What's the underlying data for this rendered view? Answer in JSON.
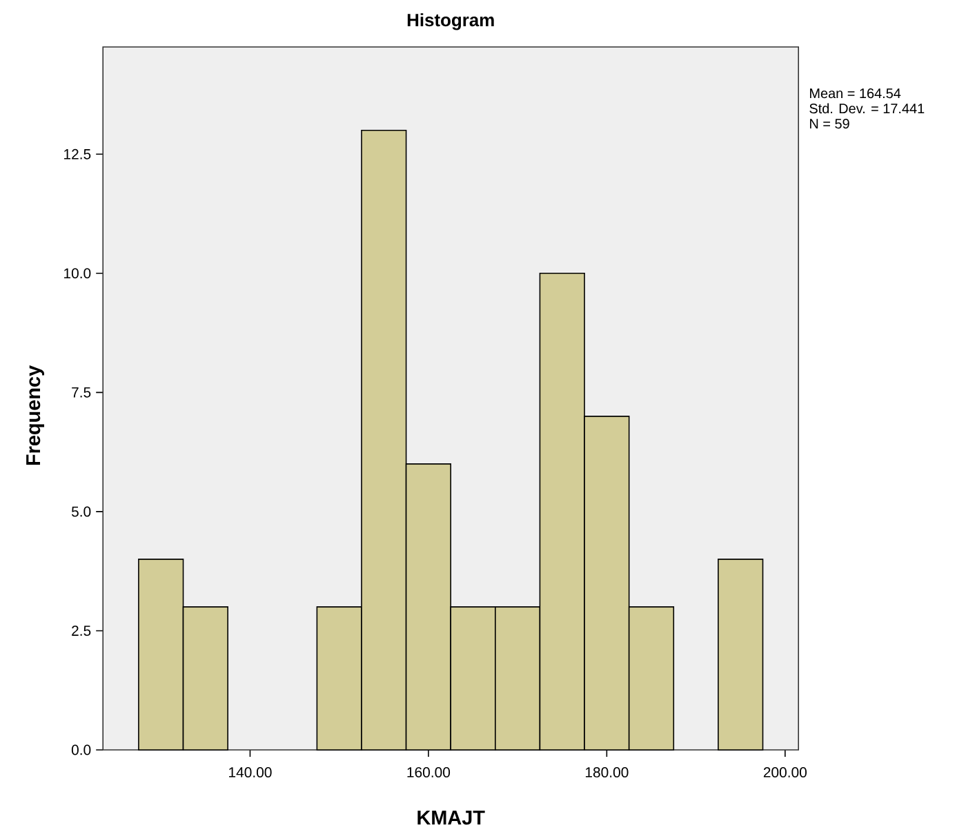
{
  "chart_data": {
    "type": "histogram",
    "title": "Histogram",
    "xlabel": "KMAJT",
    "ylabel": "Frequency",
    "bins": [
      127.5,
      132.5,
      137.5,
      142.5,
      147.5,
      152.5,
      157.5,
      162.5,
      167.5,
      172.5,
      177.5,
      182.5,
      187.5,
      192.5,
      197.5
    ],
    "values": [
      4,
      3,
      0,
      0,
      3,
      13,
      6,
      3,
      3,
      10,
      7,
      3,
      0,
      4
    ],
    "color": "#d3cd97",
    "xlim": [
      123.5,
      201.5
    ],
    "ylim": [
      0,
      14.75
    ],
    "xticks": [
      {
        "value": 140,
        "label": "140.00"
      },
      {
        "value": 160,
        "label": "160.00"
      },
      {
        "value": 180,
        "label": "180.00"
      },
      {
        "value": 200,
        "label": "200.00"
      }
    ],
    "yticks": [
      {
        "value": 0,
        "label": "0.0"
      },
      {
        "value": 2.5,
        "label": "2.5"
      },
      {
        "value": 5,
        "label": "5.0"
      },
      {
        "value": 7.5,
        "label": "7.5"
      },
      {
        "value": 10,
        "label": "10.0"
      },
      {
        "value": 12.5,
        "label": "12.5"
      }
    ],
    "annotations": [
      "Mean = 164.54",
      "Std. Dev. = 17.441",
      "N = 59"
    ]
  }
}
